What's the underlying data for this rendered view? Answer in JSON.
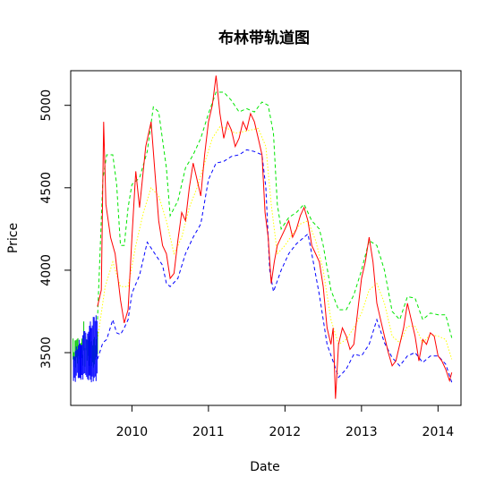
{
  "chart_data": {
    "type": "line",
    "title": "布林带轨道图",
    "xlabel": "Date",
    "ylabel": "Price",
    "xlim": [
      2009.2,
      2014.3
    ],
    "ylim": [
      3180,
      5210
    ],
    "x_ticks": [
      2010,
      2011,
      2012,
      2013,
      2014
    ],
    "x_tick_labels": [
      "2010",
      "2011",
      "2012",
      "2013",
      "2014"
    ],
    "y_ticks": [
      3500,
      4000,
      4500,
      5000
    ],
    "y_tick_labels": [
      "3500",
      "4000",
      "4500",
      "5000"
    ],
    "grid": false,
    "legend": "none",
    "series": [
      {
        "color": "#ff0000",
        "style": "solid",
        "points": [
          [
            2009.55,
            3780
          ],
          [
            2009.6,
            3880
          ],
          [
            2009.63,
            4900
          ],
          [
            2009.66,
            4400
          ],
          [
            2009.72,
            4200
          ],
          [
            2009.78,
            4100
          ],
          [
            2009.85,
            3820
          ],
          [
            2009.9,
            3680
          ],
          [
            2009.95,
            3760
          ],
          [
            2010.0,
            4200
          ],
          [
            2010.05,
            4600
          ],
          [
            2010.1,
            4380
          ],
          [
            2010.18,
            4750
          ],
          [
            2010.25,
            4900
          ],
          [
            2010.3,
            4600
          ],
          [
            2010.35,
            4300
          ],
          [
            2010.4,
            4150
          ],
          [
            2010.45,
            4100
          ],
          [
            2010.5,
            3950
          ],
          [
            2010.55,
            3980
          ],
          [
            2010.6,
            4180
          ],
          [
            2010.65,
            4350
          ],
          [
            2010.7,
            4300
          ],
          [
            2010.75,
            4500
          ],
          [
            2010.8,
            4650
          ],
          [
            2010.85,
            4550
          ],
          [
            2010.9,
            4450
          ],
          [
            2010.95,
            4700
          ],
          [
            2011.0,
            4900
          ],
          [
            2011.05,
            5000
          ],
          [
            2011.1,
            5180
          ],
          [
            2011.15,
            4950
          ],
          [
            2011.2,
            4800
          ],
          [
            2011.25,
            4900
          ],
          [
            2011.3,
            4850
          ],
          [
            2011.35,
            4750
          ],
          [
            2011.4,
            4800
          ],
          [
            2011.45,
            4900
          ],
          [
            2011.5,
            4850
          ],
          [
            2011.55,
            4950
          ],
          [
            2011.6,
            4900
          ],
          [
            2011.65,
            4800
          ],
          [
            2011.7,
            4700
          ],
          [
            2011.74,
            4350
          ],
          [
            2011.78,
            4200
          ],
          [
            2011.82,
            3920
          ],
          [
            2011.86,
            4050
          ],
          [
            2011.9,
            4150
          ],
          [
            2011.95,
            4200
          ],
          [
            2012.0,
            4250
          ],
          [
            2012.05,
            4300
          ],
          [
            2012.1,
            4200
          ],
          [
            2012.15,
            4250
          ],
          [
            2012.2,
            4330
          ],
          [
            2012.25,
            4380
          ],
          [
            2012.3,
            4300
          ],
          [
            2012.35,
            4150
          ],
          [
            2012.4,
            4100
          ],
          [
            2012.45,
            4050
          ],
          [
            2012.5,
            3900
          ],
          [
            2012.55,
            3650
          ],
          [
            2012.6,
            3550
          ],
          [
            2012.63,
            3650
          ],
          [
            2012.66,
            3220
          ],
          [
            2012.7,
            3550
          ],
          [
            2012.75,
            3650
          ],
          [
            2012.8,
            3600
          ],
          [
            2012.85,
            3520
          ],
          [
            2012.9,
            3550
          ],
          [
            2012.95,
            3750
          ],
          [
            2013.0,
            3950
          ],
          [
            2013.05,
            4050
          ],
          [
            2013.1,
            4200
          ],
          [
            2013.15,
            4050
          ],
          [
            2013.2,
            3800
          ],
          [
            2013.25,
            3700
          ],
          [
            2013.3,
            3600
          ],
          [
            2013.35,
            3500
          ],
          [
            2013.4,
            3420
          ],
          [
            2013.45,
            3450
          ],
          [
            2013.5,
            3550
          ],
          [
            2013.55,
            3650
          ],
          [
            2013.6,
            3800
          ],
          [
            2013.65,
            3700
          ],
          [
            2013.7,
            3600
          ],
          [
            2013.75,
            3450
          ],
          [
            2013.8,
            3580
          ],
          [
            2013.85,
            3550
          ],
          [
            2013.9,
            3620
          ],
          [
            2013.95,
            3600
          ],
          [
            2014.0,
            3480
          ],
          [
            2014.05,
            3450
          ],
          [
            2014.1,
            3400
          ],
          [
            2014.15,
            3330
          ],
          [
            2014.18,
            3380
          ]
        ]
      },
      {
        "color": "#00e600",
        "style": "dashed",
        "points": [
          [
            2009.55,
            3700
          ],
          [
            2009.62,
            4550
          ],
          [
            2009.67,
            4700
          ],
          [
            2009.75,
            4700
          ],
          [
            2009.8,
            4520
          ],
          [
            2009.85,
            4150
          ],
          [
            2009.9,
            4150
          ],
          [
            2009.95,
            4380
          ],
          [
            2010.0,
            4520
          ],
          [
            2010.1,
            4560
          ],
          [
            2010.2,
            4720
          ],
          [
            2010.28,
            4990
          ],
          [
            2010.35,
            4960
          ],
          [
            2010.45,
            4620
          ],
          [
            2010.5,
            4330
          ],
          [
            2010.6,
            4420
          ],
          [
            2010.7,
            4620
          ],
          [
            2010.8,
            4700
          ],
          [
            2010.9,
            4800
          ],
          [
            2011.0,
            4950
          ],
          [
            2011.1,
            5080
          ],
          [
            2011.2,
            5080
          ],
          [
            2011.3,
            5030
          ],
          [
            2011.4,
            4960
          ],
          [
            2011.5,
            4980
          ],
          [
            2011.6,
            4960
          ],
          [
            2011.7,
            5020
          ],
          [
            2011.78,
            5000
          ],
          [
            2011.85,
            4830
          ],
          [
            2011.9,
            4400
          ],
          [
            2011.95,
            4250
          ],
          [
            2012.05,
            4320
          ],
          [
            2012.15,
            4350
          ],
          [
            2012.25,
            4400
          ],
          [
            2012.35,
            4300
          ],
          [
            2012.45,
            4250
          ],
          [
            2012.5,
            4150
          ],
          [
            2012.6,
            3880
          ],
          [
            2012.7,
            3760
          ],
          [
            2012.8,
            3760
          ],
          [
            2012.9,
            3850
          ],
          [
            2013.0,
            4000
          ],
          [
            2013.1,
            4180
          ],
          [
            2013.2,
            4150
          ],
          [
            2013.3,
            4000
          ],
          [
            2013.4,
            3750
          ],
          [
            2013.5,
            3700
          ],
          [
            2013.6,
            3840
          ],
          [
            2013.7,
            3830
          ],
          [
            2013.8,
            3700
          ],
          [
            2013.9,
            3740
          ],
          [
            2014.0,
            3730
          ],
          [
            2014.1,
            3730
          ],
          [
            2014.18,
            3590
          ]
        ]
      },
      {
        "color": "#0000ff",
        "style": "dashed",
        "points": [
          [
            2009.55,
            3460
          ],
          [
            2009.62,
            3560
          ],
          [
            2009.67,
            3580
          ],
          [
            2009.75,
            3700
          ],
          [
            2009.8,
            3620
          ],
          [
            2009.85,
            3610
          ],
          [
            2009.9,
            3650
          ],
          [
            2009.95,
            3700
          ],
          [
            2010.0,
            3860
          ],
          [
            2010.1,
            3970
          ],
          [
            2010.2,
            4170
          ],
          [
            2010.3,
            4100
          ],
          [
            2010.4,
            4030
          ],
          [
            2010.45,
            3920
          ],
          [
            2010.5,
            3900
          ],
          [
            2010.6,
            3950
          ],
          [
            2010.7,
            4100
          ],
          [
            2010.8,
            4200
          ],
          [
            2010.9,
            4280
          ],
          [
            2011.0,
            4550
          ],
          [
            2011.1,
            4650
          ],
          [
            2011.2,
            4660
          ],
          [
            2011.3,
            4690
          ],
          [
            2011.4,
            4700
          ],
          [
            2011.5,
            4730
          ],
          [
            2011.6,
            4720
          ],
          [
            2011.7,
            4700
          ],
          [
            2011.75,
            4500
          ],
          [
            2011.8,
            4000
          ],
          [
            2011.85,
            3870
          ],
          [
            2011.95,
            4000
          ],
          [
            2012.05,
            4100
          ],
          [
            2012.15,
            4160
          ],
          [
            2012.25,
            4200
          ],
          [
            2012.3,
            4220
          ],
          [
            2012.35,
            4100
          ],
          [
            2012.45,
            3850
          ],
          [
            2012.55,
            3550
          ],
          [
            2012.65,
            3420
          ],
          [
            2012.7,
            3350
          ],
          [
            2012.8,
            3400
          ],
          [
            2012.9,
            3490
          ],
          [
            2013.0,
            3480
          ],
          [
            2013.1,
            3550
          ],
          [
            2013.2,
            3700
          ],
          [
            2013.3,
            3560
          ],
          [
            2013.4,
            3470
          ],
          [
            2013.5,
            3420
          ],
          [
            2013.6,
            3480
          ],
          [
            2013.7,
            3500
          ],
          [
            2013.8,
            3440
          ],
          [
            2013.9,
            3480
          ],
          [
            2014.0,
            3480
          ],
          [
            2014.1,
            3430
          ],
          [
            2014.18,
            3320
          ]
        ]
      },
      {
        "color": "#ffff00",
        "style": "dotted",
        "points": [
          [
            2009.55,
            3580
          ],
          [
            2009.65,
            3900
          ],
          [
            2009.75,
            4050
          ],
          [
            2009.85,
            3900
          ],
          [
            2009.95,
            3900
          ],
          [
            2010.05,
            4150
          ],
          [
            2010.15,
            4350
          ],
          [
            2010.25,
            4500
          ],
          [
            2010.35,
            4450
          ],
          [
            2010.45,
            4300
          ],
          [
            2010.55,
            4100
          ],
          [
            2010.65,
            4200
          ],
          [
            2010.75,
            4380
          ],
          [
            2010.85,
            4500
          ],
          [
            2010.95,
            4650
          ],
          [
            2011.05,
            4800
          ],
          [
            2011.15,
            4870
          ],
          [
            2011.25,
            4860
          ],
          [
            2011.35,
            4830
          ],
          [
            2011.45,
            4840
          ],
          [
            2011.55,
            4850
          ],
          [
            2011.65,
            4860
          ],
          [
            2011.75,
            4750
          ],
          [
            2011.82,
            4400
          ],
          [
            2011.9,
            4100
          ],
          [
            2012.0,
            4150
          ],
          [
            2012.1,
            4220
          ],
          [
            2012.2,
            4280
          ],
          [
            2012.3,
            4300
          ],
          [
            2012.4,
            4180
          ],
          [
            2012.5,
            4000
          ],
          [
            2012.6,
            3700
          ],
          [
            2012.7,
            3550
          ],
          [
            2012.8,
            3580
          ],
          [
            2012.9,
            3650
          ],
          [
            2013.0,
            3740
          ],
          [
            2013.1,
            3880
          ],
          [
            2013.2,
            3920
          ],
          [
            2013.3,
            3800
          ],
          [
            2013.4,
            3600
          ],
          [
            2013.5,
            3560
          ],
          [
            2013.6,
            3660
          ],
          [
            2013.7,
            3660
          ],
          [
            2013.8,
            3560
          ],
          [
            2013.9,
            3610
          ],
          [
            2014.0,
            3600
          ],
          [
            2014.1,
            3580
          ],
          [
            2014.18,
            3460
          ]
        ]
      }
    ],
    "early_cluster": {
      "x_range": [
        2009.23,
        2009.55
      ],
      "green_range": [
        3400,
        3600
      ],
      "blue_range": [
        3320,
        3680
      ]
    }
  }
}
